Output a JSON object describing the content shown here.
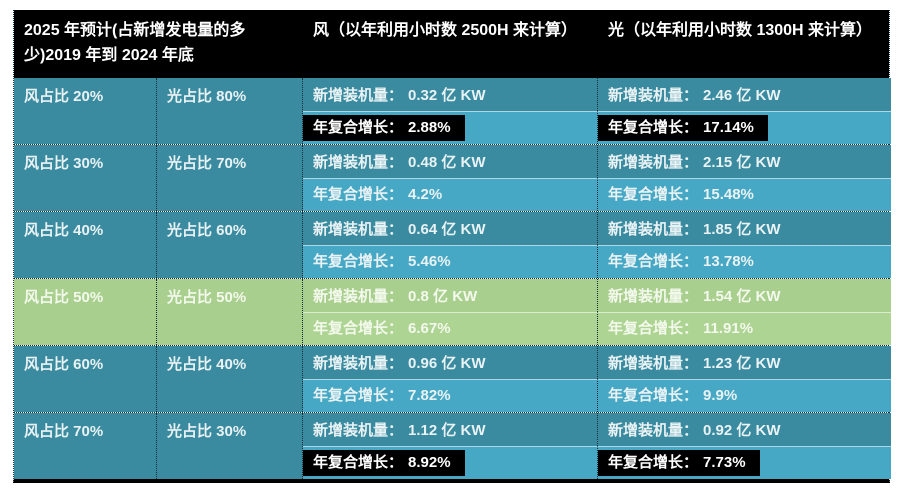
{
  "chart_data": {
    "type": "table",
    "title": "2025 年预计(占新增发电量的多少)2019 年到 2024 年底",
    "columns": [
      "风占比",
      "光占比",
      "风 新增装机量 (亿KW)",
      "风 年复合增长 (%)",
      "光 新增装机量 (亿KW)",
      "光 年复合增长 (%)"
    ],
    "wind_share_pct": [
      20,
      30,
      40,
      50,
      60,
      70
    ],
    "solar_share_pct": [
      80,
      70,
      60,
      50,
      40,
      30
    ],
    "wind_capacity_yi_kw": [
      0.32,
      0.48,
      0.64,
      0.8,
      0.96,
      1.12
    ],
    "wind_cagr_pct": [
      2.88,
      4.2,
      5.46,
      6.67,
      7.82,
      8.92
    ],
    "solar_capacity_yi_kw": [
      2.46,
      2.15,
      1.85,
      1.54,
      1.23,
      0.92
    ],
    "solar_cagr_pct": [
      17.14,
      15.48,
      13.78,
      11.91,
      9.9,
      7.73
    ],
    "wind_hours_assumption": "2500H",
    "solar_hours_assumption": "1300H",
    "highlighted_cagr_row_indices": [
      0,
      5
    ],
    "green_row_index": 3
  },
  "table": {
    "header": {
      "period": "2025 年预计(占新增发电量的多少)2019 年到 2024 年底",
      "wind": "风（以年利用小时数 2500H 来计算）",
      "solar": "光（以年利用小时数 1300H 来计算）"
    },
    "labels": {
      "capacity": "新增装机量：",
      "cagr": "年复合增长："
    },
    "rows": [
      {
        "wind_share": "风占比 20%",
        "solar_share": "光占比 80%",
        "wind_capacity": "0.32 亿 KW",
        "wind_cagr": "2.88%",
        "solar_capacity": "2.46 亿 KW",
        "solar_cagr": "17.14%",
        "highlight_cagr": true,
        "row_style": "teal"
      },
      {
        "wind_share": "风占比 30%",
        "solar_share": "光占比 70%",
        "wind_capacity": "0.48 亿 KW",
        "wind_cagr": "4.2%",
        "solar_capacity": "2.15 亿 KW",
        "solar_cagr": "15.48%",
        "highlight_cagr": false,
        "row_style": "teal"
      },
      {
        "wind_share": "风占比 40%",
        "solar_share": "光占比 60%",
        "wind_capacity": "0.64 亿 KW",
        "wind_cagr": "5.46%",
        "solar_capacity": "1.85 亿 KW",
        "solar_cagr": "13.78%",
        "highlight_cagr": false,
        "row_style": "teal"
      },
      {
        "wind_share": "风占比 50%",
        "solar_share": "光占比 50%",
        "wind_capacity": "0.8 亿 KW",
        "wind_cagr": "6.67%",
        "solar_capacity": "1.54 亿 KW",
        "solar_cagr": "11.91%",
        "highlight_cagr": false,
        "row_style": "green"
      },
      {
        "wind_share": "风占比 60%",
        "solar_share": "光占比 40%",
        "wind_capacity": "0.96 亿 KW",
        "wind_cagr": "7.82%",
        "solar_capacity": "1.23 亿 KW",
        "solar_cagr": "9.9%",
        "highlight_cagr": false,
        "row_style": "teal"
      },
      {
        "wind_share": "风占比 70%",
        "solar_share": "光占比 30%",
        "wind_capacity": "1.12 亿 KW",
        "wind_cagr": "8.92%",
        "solar_capacity": "0.92 亿 KW",
        "solar_cagr": "7.73%",
        "highlight_cagr": true,
        "row_style": "teal"
      }
    ],
    "colors": {
      "header_bg": "#000000",
      "teal_dark": "#3a8ba0",
      "teal_light": "#46a8c4",
      "green_row": "#a9cf8e",
      "highlight_bg": "#000000",
      "highlight_text": "#ffffff",
      "body_text": "#e9f2f4"
    }
  }
}
